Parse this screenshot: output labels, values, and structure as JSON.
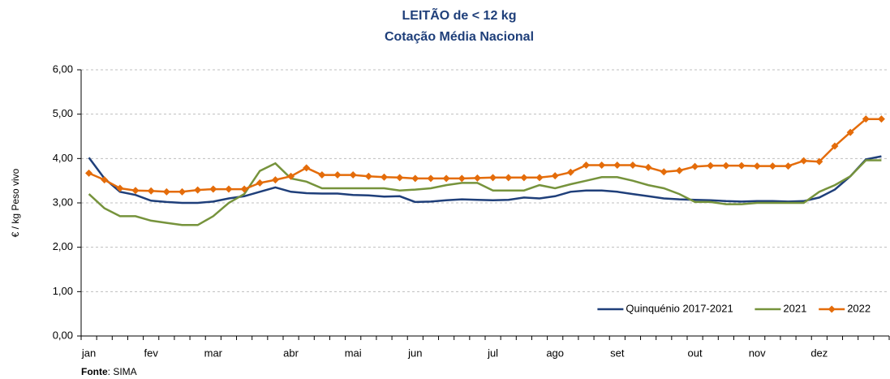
{
  "chart_data": {
    "type": "line",
    "title": "LEITÃO de < 12 kg",
    "subtitle": "Cotação Média Nacional",
    "y_label": "€ / kg Peso vivo",
    "source_label": "Fonte",
    "source_text": ": SIMA",
    "categories": [
      "jan",
      null,
      null,
      null,
      "fev",
      null,
      null,
      null,
      "mar",
      null,
      null,
      null,
      null,
      "abr",
      null,
      null,
      null,
      "mai",
      null,
      null,
      null,
      "jun",
      null,
      null,
      null,
      null,
      "jul",
      null,
      null,
      null,
      "ago",
      null,
      null,
      null,
      "set",
      null,
      null,
      null,
      null,
      "out",
      null,
      null,
      null,
      "nov",
      null,
      null,
      null,
      "dez",
      null,
      null,
      null,
      null
    ],
    "series": [
      {
        "name": "Quinquénio 2017-2021",
        "color": "#1f3f7a",
        "marker": false,
        "values": [
          4.02,
          3.55,
          3.25,
          3.18,
          3.05,
          3.02,
          3.0,
          3.0,
          3.03,
          3.1,
          3.15,
          3.25,
          3.35,
          3.25,
          3.22,
          3.21,
          3.21,
          3.18,
          3.17,
          3.14,
          3.15,
          3.02,
          3.03,
          3.06,
          3.08,
          3.07,
          3.06,
          3.07,
          3.12,
          3.1,
          3.15,
          3.25,
          3.28,
          3.28,
          3.25,
          3.2,
          3.15,
          3.1,
          3.08,
          3.07,
          3.06,
          3.04,
          3.03,
          3.04,
          3.04,
          3.03,
          3.04,
          3.12,
          3.3,
          3.6,
          3.98,
          4.05
        ]
      },
      {
        "name": "2021",
        "color": "#76933c",
        "marker": false,
        "values": [
          3.2,
          2.88,
          2.7,
          2.7,
          2.6,
          2.55,
          2.5,
          2.5,
          2.7,
          3.0,
          3.2,
          3.72,
          3.89,
          3.55,
          3.48,
          3.33,
          3.33,
          3.33,
          3.33,
          3.33,
          3.28,
          3.3,
          3.33,
          3.4,
          3.45,
          3.45,
          3.28,
          3.28,
          3.28,
          3.4,
          3.33,
          3.42,
          3.5,
          3.58,
          3.58,
          3.5,
          3.4,
          3.33,
          3.2,
          3.02,
          3.02,
          2.97,
          2.97,
          3.0,
          3.0,
          3.0,
          3.0,
          3.25,
          3.4,
          3.6,
          3.96,
          3.96
        ]
      },
      {
        "name": "2022",
        "color": "#e46c0a",
        "marker": true,
        "values": [
          3.67,
          3.52,
          3.33,
          3.28,
          3.27,
          3.25,
          3.25,
          3.29,
          3.31,
          3.31,
          3.31,
          3.45,
          3.52,
          3.6,
          3.79,
          3.63,
          3.63,
          3.63,
          3.6,
          3.58,
          3.57,
          3.55,
          3.55,
          3.55,
          3.55,
          3.56,
          3.57,
          3.57,
          3.57,
          3.57,
          3.61,
          3.69,
          3.85,
          3.85,
          3.85,
          3.85,
          3.8,
          3.7,
          3.73,
          3.82,
          3.84,
          3.84,
          3.84,
          3.83,
          3.83,
          3.83,
          3.95,
          3.93,
          4.28,
          4.59,
          4.89,
          4.89
        ]
      }
    ],
    "ylim": [
      0,
      6
    ],
    "yticks": [
      {
        "value": 0,
        "label": "0,00"
      },
      {
        "value": 1,
        "label": "1,00"
      },
      {
        "value": 2,
        "label": "2,00"
      },
      {
        "value": 3,
        "label": "3,00"
      },
      {
        "value": 4,
        "label": "4,00"
      },
      {
        "value": 5,
        "label": "5,00"
      },
      {
        "value": 6,
        "label": "6,00"
      }
    ],
    "grid": true,
    "legend": "bottom-right"
  }
}
